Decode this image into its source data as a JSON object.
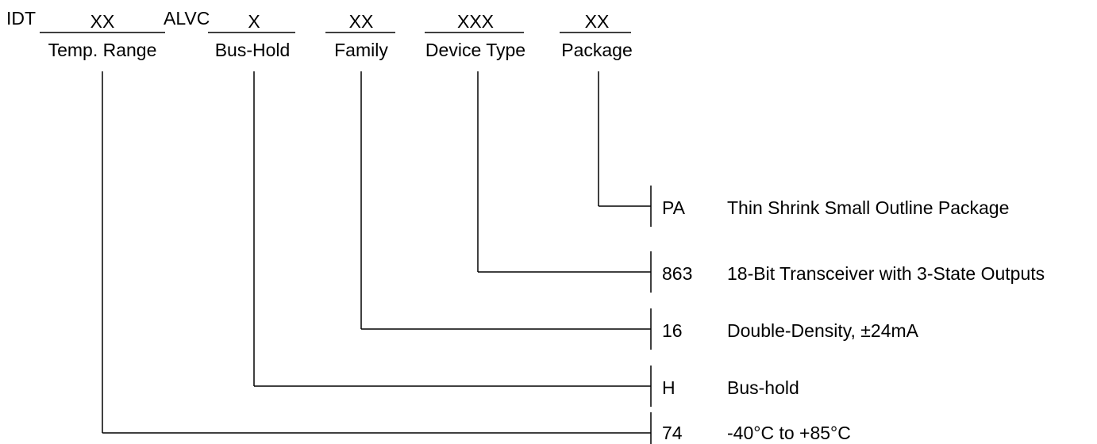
{
  "part_number": {
    "prefix": "IDT",
    "temp_placeholder": "XX",
    "family_prefix": "ALVC",
    "bushold_placeholder": "X",
    "family_placeholder": "XX",
    "device_placeholder": "XXX",
    "package_placeholder": "XX"
  },
  "field_labels": {
    "temp_range": "Temp. Range",
    "bus_hold": "Bus-Hold",
    "family": "Family",
    "device_type": "Device Type",
    "package": "Package"
  },
  "options": [
    {
      "code": "PA",
      "description": "Thin Shrink Small Outline Package"
    },
    {
      "code": "863",
      "description": "18-Bit Transceiver with 3-State Outputs"
    },
    {
      "code": "16",
      "description": "Double-Density, ±24mA"
    },
    {
      "code": "H",
      "description": "Bus-hold"
    },
    {
      "code": "74",
      "description": "-40°C to +85°C"
    }
  ]
}
